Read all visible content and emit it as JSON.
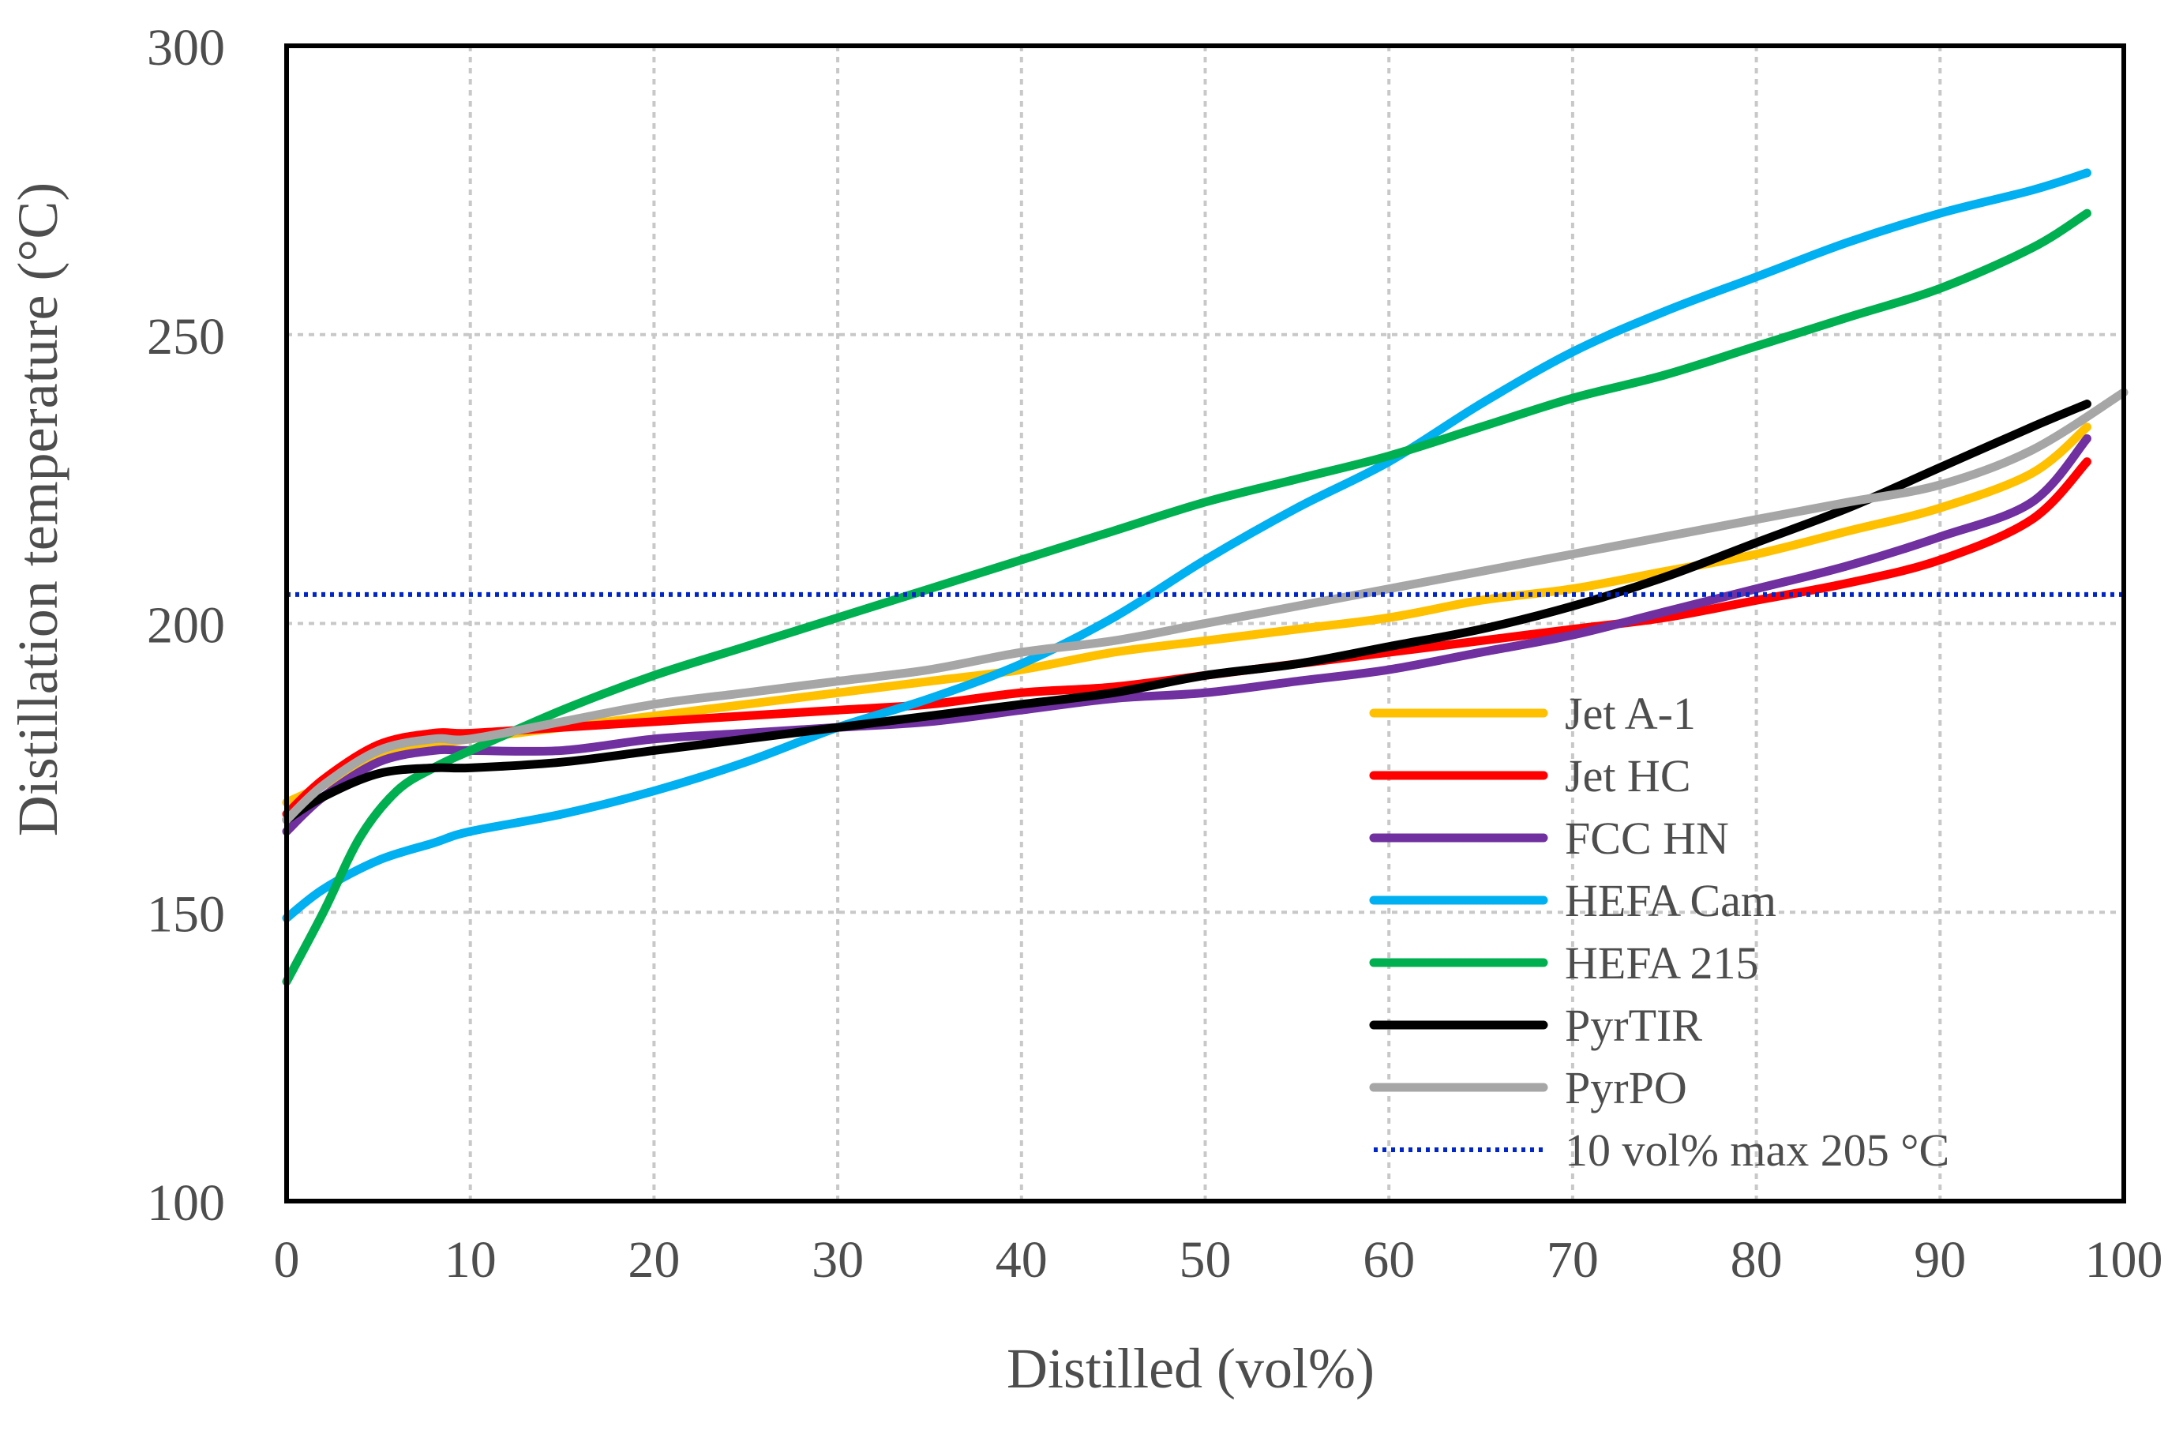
{
  "chart_data": {
    "type": "line",
    "title": "",
    "xlabel": "Distilled (vol%)",
    "ylabel": "Distillation temperature (°C)",
    "xlim": [
      0,
      100
    ],
    "ylim": [
      100,
      300
    ],
    "xticks": [
      0,
      10,
      20,
      30,
      40,
      50,
      60,
      70,
      80,
      90,
      100
    ],
    "yticks": [
      100,
      150,
      200,
      250,
      300
    ],
    "grid": true,
    "legend_position": "bottom-right",
    "series": [
      {
        "name": "Jet A-1",
        "color": "#FFC000",
        "x": [
          0,
          2,
          5,
          8,
          10,
          15,
          20,
          25,
          30,
          35,
          40,
          45,
          50,
          55,
          60,
          65,
          70,
          75,
          80,
          85,
          90,
          95,
          98
        ],
        "y": [
          169,
          172,
          177,
          179,
          180,
          182,
          184,
          186,
          188,
          190,
          192,
          195,
          197,
          199,
          201,
          204,
          206,
          209,
          212,
          216,
          220,
          226,
          234
        ]
      },
      {
        "name": "Jet HC",
        "color": "#FF0000",
        "x": [
          0,
          2,
          5,
          8,
          10,
          15,
          20,
          25,
          30,
          35,
          40,
          45,
          50,
          55,
          60,
          65,
          70,
          75,
          80,
          85,
          90,
          95,
          98
        ],
        "y": [
          167,
          173,
          179,
          181,
          181,
          182,
          183,
          184,
          185,
          186,
          188,
          189,
          191,
          193,
          195,
          197,
          199,
          201,
          204,
          207,
          211,
          218,
          228
        ]
      },
      {
        "name": "FCC HN",
        "color": "#7030A0",
        "x": [
          0,
          2,
          5,
          8,
          10,
          15,
          20,
          25,
          30,
          35,
          40,
          45,
          50,
          55,
          60,
          65,
          70,
          75,
          80,
          85,
          90,
          95,
          98
        ],
        "y": [
          164,
          170,
          176,
          178,
          178,
          178,
          180,
          181,
          182,
          183,
          185,
          187,
          188,
          190,
          192,
          195,
          198,
          202,
          206,
          210,
          215,
          221,
          232
        ]
      },
      {
        "name": "HEFA Cam",
        "color": "#00B0F0",
        "x": [
          0,
          2,
          5,
          8,
          10,
          15,
          20,
          25,
          30,
          35,
          40,
          45,
          50,
          55,
          60,
          65,
          70,
          75,
          80,
          85,
          90,
          95,
          98
        ],
        "y": [
          149,
          154,
          159,
          162,
          164,
          167,
          171,
          176,
          182,
          187,
          193,
          201,
          211,
          220,
          228,
          238,
          247,
          254,
          260,
          266,
          271,
          275,
          278
        ]
      },
      {
        "name": "HEFA 215",
        "color": "#00B050",
        "x": [
          0,
          2,
          4,
          6,
          8,
          10,
          15,
          20,
          25,
          30,
          35,
          40,
          45,
          50,
          55,
          60,
          65,
          70,
          75,
          80,
          85,
          90,
          95,
          98
        ],
        "y": [
          138,
          150,
          163,
          171,
          175,
          178,
          185,
          191,
          196,
          201,
          206,
          211,
          216,
          221,
          225,
          229,
          234,
          239,
          243,
          248,
          253,
          258,
          265,
          271
        ]
      },
      {
        "name": "PyrTIR",
        "color": "#000000",
        "x": [
          0,
          2,
          5,
          8,
          10,
          15,
          20,
          25,
          30,
          35,
          40,
          45,
          50,
          55,
          60,
          65,
          70,
          75,
          80,
          85,
          90,
          95,
          98
        ],
        "y": [
          166,
          170,
          174,
          175,
          175,
          176,
          178,
          180,
          182,
          184,
          186,
          188,
          191,
          193,
          196,
          199,
          203,
          208,
          214,
          220,
          227,
          234,
          238
        ]
      },
      {
        "name": "PyrPO",
        "color": "#A6A6A6",
        "x": [
          0,
          2,
          5,
          8,
          10,
          15,
          20,
          25,
          30,
          35,
          40,
          45,
          50,
          55,
          60,
          65,
          70,
          75,
          80,
          85,
          90,
          95,
          100
        ],
        "y": [
          166,
          172,
          178,
          180,
          180,
          183,
          186,
          188,
          190,
          192,
          195,
          197,
          200,
          203,
          206,
          209,
          212,
          215,
          218,
          221,
          224,
          230,
          240
        ]
      },
      {
        "name": "10 vol% max 205 °C",
        "color": "#0026C9",
        "style": "dotted",
        "x": [
          0,
          100
        ],
        "y": [
          205,
          205
        ]
      }
    ]
  }
}
